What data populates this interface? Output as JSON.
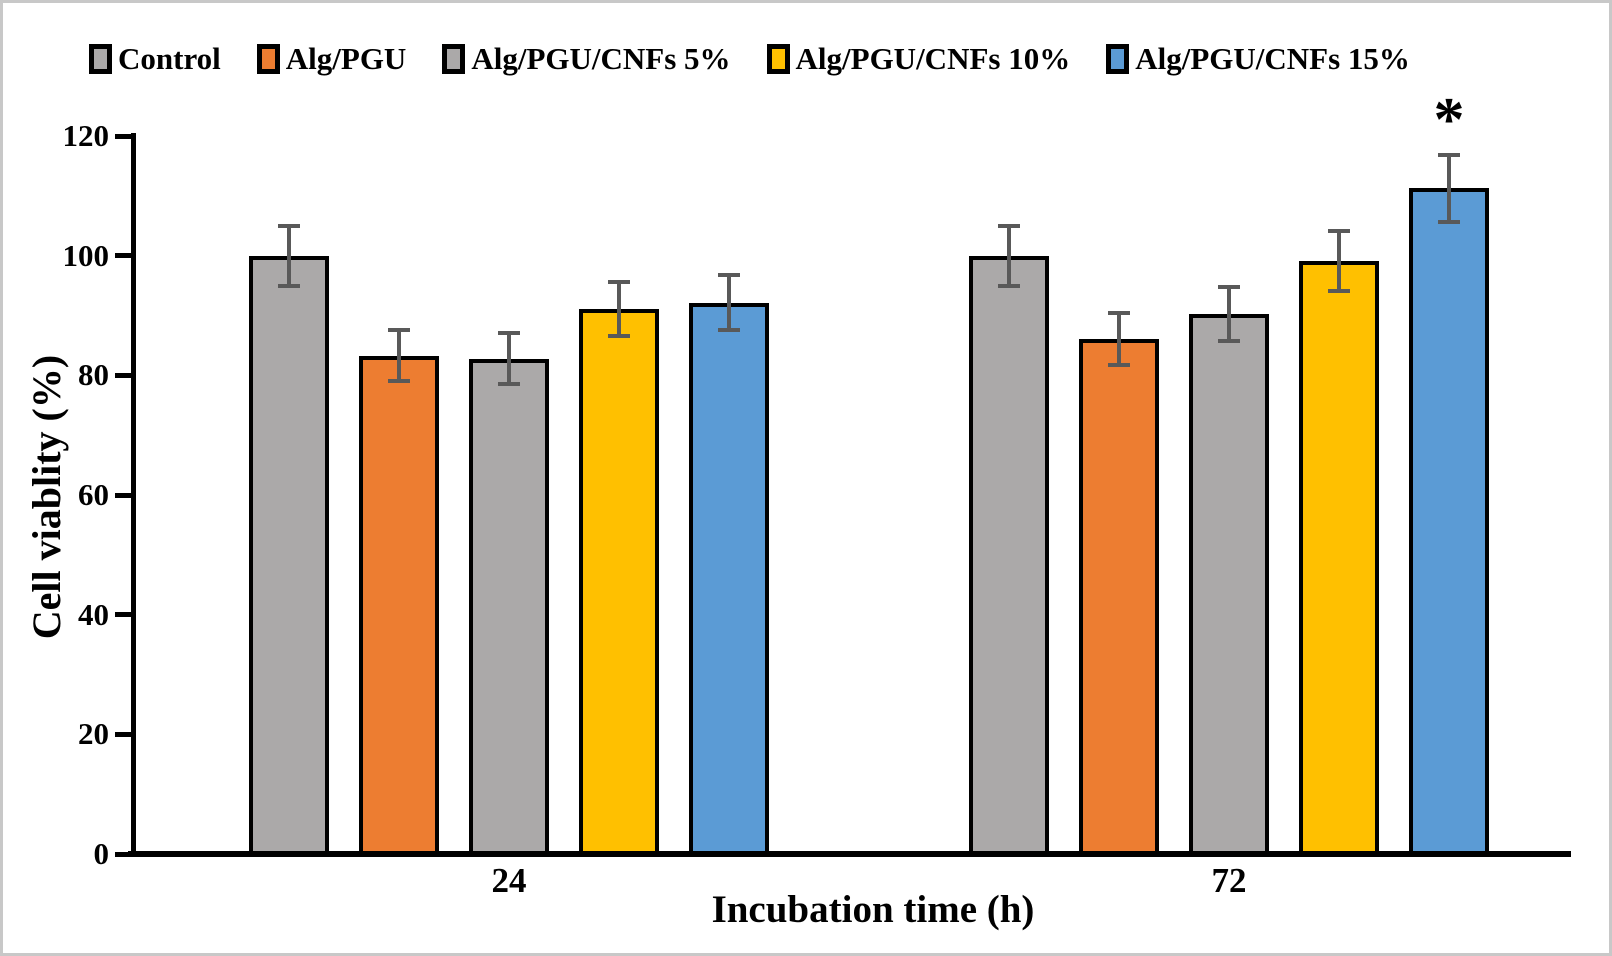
{
  "figure": {
    "background": "#ffffff",
    "border_color": "#c8c8c8"
  },
  "chart_data": {
    "type": "bar",
    "title": "",
    "xlabel": "Incubation time (h)",
    "ylabel": "Cell viablity (%)",
    "ylim": [
      0,
      120
    ],
    "yticks": [
      0,
      20,
      40,
      60,
      80,
      100,
      120
    ],
    "categories": [
      "24",
      "72"
    ],
    "series": [
      {
        "name": "Control",
        "color": "#ABA9A9",
        "values": [
          100.0,
          100.0
        ],
        "errors": [
          5.0,
          5.0
        ]
      },
      {
        "name": "Alg/PGU",
        "color": "#ED7D31",
        "values": [
          83.3,
          86.1
        ],
        "errors": [
          4.2,
          4.4
        ]
      },
      {
        "name": "Alg/PGU/CNFs 5%",
        "color": "#ABA9A9",
        "values": [
          82.8,
          90.3
        ],
        "errors": [
          4.2,
          4.5
        ]
      },
      {
        "name": "Alg/PGU/CNFs 10%",
        "color": "#FFC000",
        "values": [
          91.1,
          99.1
        ],
        "errors": [
          4.5,
          5.0
        ]
      },
      {
        "name": "Alg/PGU/CNFs 15%",
        "color": "#5B9BD5",
        "values": [
          92.1,
          111.3
        ],
        "errors": [
          4.6,
          5.6
        ]
      }
    ],
    "annotations": [
      {
        "text": "*",
        "series_index": 4,
        "category_index": 1
      }
    ],
    "legend_position": "top",
    "grid": false,
    "error_bar_color": "#595959",
    "bar_border_color": "#000000"
  }
}
